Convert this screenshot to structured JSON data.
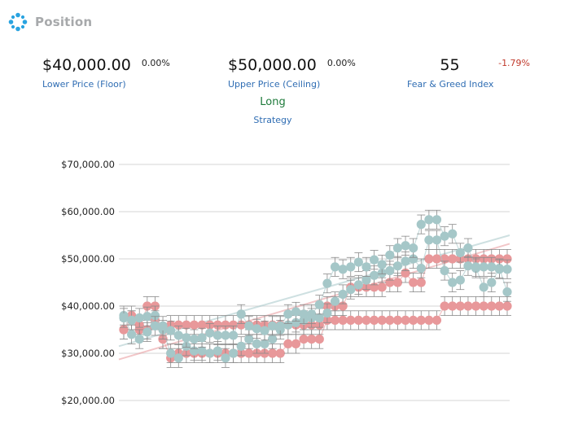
{
  "header": {
    "title": "Position",
    "icon": "position-icon"
  },
  "stats": {
    "floor": {
      "value": "$40,000.00",
      "change": "0.00%",
      "label": "Lower Price (Floor)"
    },
    "ceiling": {
      "value": "$50,000.00",
      "change": "0.00%",
      "label": "Upper Price (Ceiling)"
    },
    "fear_greed": {
      "value": "55",
      "change": "-1.79%",
      "label": "Fear & Greed Index"
    },
    "strategy": {
      "value": "Long",
      "label": "Strategy"
    }
  },
  "colors": {
    "pink": "#e8989a",
    "teal": "#a5c7c8",
    "link": "#2f6db3",
    "positive": "#1d7a3a",
    "negative": "#c0392b"
  },
  "chart_data": {
    "type": "scatter",
    "ylim": [
      20000,
      72000
    ],
    "y_tick_labels": [
      "$70,000.00",
      "$60,000.00",
      "$50,000.00",
      "$40,000.00",
      "$30,000.00",
      "$20,000.00"
    ],
    "y_ticks": [
      70000,
      60000,
      50000,
      40000,
      30000,
      20000
    ],
    "error_bar": 2000,
    "series": [
      {
        "color": "#e8989a",
        "trend": [
          28700,
          53200
        ],
        "values": [
          35000,
          37000,
          35000,
          40000,
          40000,
          33000,
          29000,
          30000,
          30000,
          30000,
          30000,
          30000,
          30000,
          30000,
          30000,
          30000,
          30000,
          30000,
          30000,
          30000,
          30000,
          32000,
          32000,
          33000,
          33000,
          33000,
          37000,
          37000,
          37000,
          37000,
          37000,
          37000,
          37000,
          37000,
          37000,
          37000,
          37000,
          37000,
          37000,
          37000,
          37000,
          40000,
          40000,
          40000,
          40000,
          40000,
          40000,
          40000,
          40000,
          40000
        ]
      },
      {
        "color": "#e8989a",
        "values": [
          35000,
          38000,
          36000,
          35000,
          37000,
          33000,
          36000,
          36000,
          36000,
          36000,
          36000,
          36000,
          36000,
          36000,
          36000,
          36000,
          36000,
          36000,
          36000,
          36000,
          36000,
          36000,
          36000,
          36000,
          36000,
          36000,
          40000,
          40000,
          40000,
          44000,
          44000,
          44000,
          44000,
          44000,
          45000,
          45000,
          47000,
          45000,
          45000,
          50000,
          50000,
          50000,
          50000,
          50000,
          50000,
          50000,
          50000,
          50000,
          50000,
          50000
        ]
      },
      {
        "color": "#a5c7c8",
        "trend": [
          31500,
          55000
        ],
        "values": [
          38000,
          34000,
          33000,
          34500,
          38000,
          35000,
          30000,
          29000,
          31500,
          30500,
          30500,
          30000,
          30500,
          29000,
          30000,
          31500,
          33000,
          32000,
          32000,
          33000,
          35000,
          36000,
          36500,
          37000,
          37500,
          37500,
          38500,
          41000,
          42500,
          43500,
          44500,
          45500,
          46500,
          47000,
          47500,
          48500,
          49500,
          50000,
          48000,
          54000,
          54000,
          47500,
          45000,
          45500,
          48500,
          48000,
          44000,
          45000,
          48000,
          43000
        ]
      },
      {
        "color": "#a5c7c8",
        "values": [
          37500,
          37000,
          37500,
          37800,
          35800,
          35800,
          34800,
          33800,
          33300,
          33000,
          33300,
          34300,
          33800,
          33800,
          33800,
          38300,
          35800,
          35200,
          34800,
          35800,
          35800,
          38300,
          38800,
          38300,
          38300,
          40300,
          44800,
          48300,
          47800,
          48300,
          49300,
          48300,
          49800,
          48800,
          50800,
          52300,
          52800,
          52300,
          57300,
          58300,
          58300,
          54800,
          55300,
          51300,
          52300,
          48300,
          48300,
          48300,
          47800,
          47800
        ]
      }
    ]
  }
}
